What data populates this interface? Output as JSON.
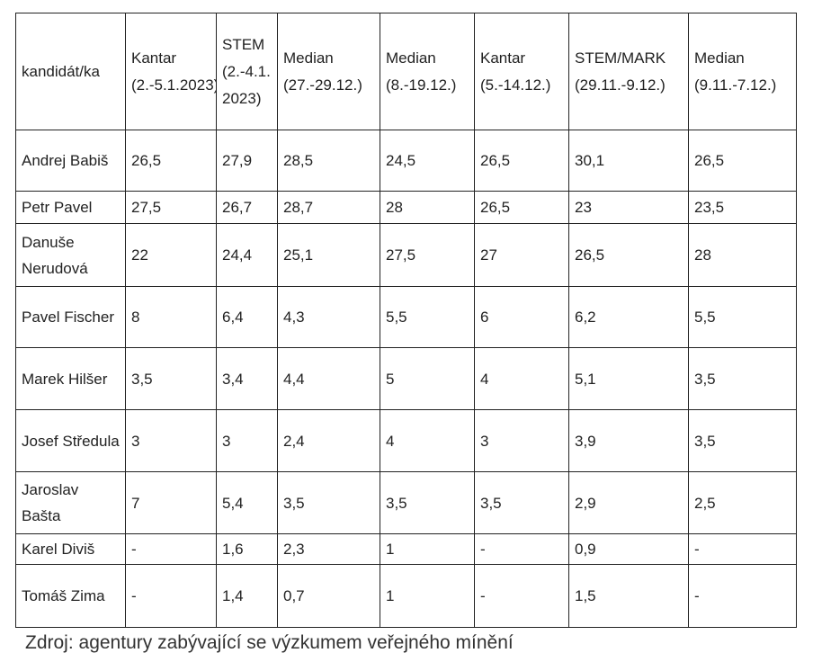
{
  "table": {
    "header": [
      "kandidát/ka",
      "Kantar (2.-5.1.2023)",
      "STEM (2.-4.1. 2023)",
      "Median (27.-29.12.)",
      "Median (8.-19.12.)",
      "Kantar (5.-14.12.)",
      "STEM/MARK (29.11.-9.12.)",
      "Median (9.11.-7.12.)"
    ],
    "rows": [
      [
        "Andrej Babiš",
        "26,5",
        "27,9",
        "28,5",
        "24,5",
        "26,5",
        "30,1",
        "26,5"
      ],
      [
        "Petr Pavel",
        "27,5",
        "26,7",
        "28,7",
        "28",
        "26,5",
        "23",
        "23,5"
      ],
      [
        "Danuše Nerudová",
        "22",
        "24,4",
        "25,1",
        "27,5",
        "27",
        "26,5",
        "28"
      ],
      [
        "Pavel Fischer",
        "8",
        "6,4",
        "4,3",
        "5,5",
        "6",
        "6,2",
        "5,5"
      ],
      [
        "Marek Hilšer",
        "3,5",
        "3,4",
        "4,4",
        "5",
        "4",
        "5,1",
        "3,5"
      ],
      [
        "Josef Středula",
        "3",
        "3",
        "2,4",
        "4",
        "3",
        "3,9",
        "3,5"
      ],
      [
        "Jaroslav Bašta",
        "7",
        "5,4",
        "3,5",
        "3,5",
        "3,5",
        "2,9",
        "2,5"
      ],
      [
        "Karel Diviš",
        "-",
        "1,6",
        "2,3",
        "1",
        "-",
        "0,9",
        "-"
      ],
      [
        "Tomáš Zima",
        "-",
        "1,4",
        "0,7",
        "1",
        "-",
        "1,5",
        "-"
      ]
    ]
  },
  "source": "Zdroj: agentury zabývající se výzkumem veřejného mínění"
}
